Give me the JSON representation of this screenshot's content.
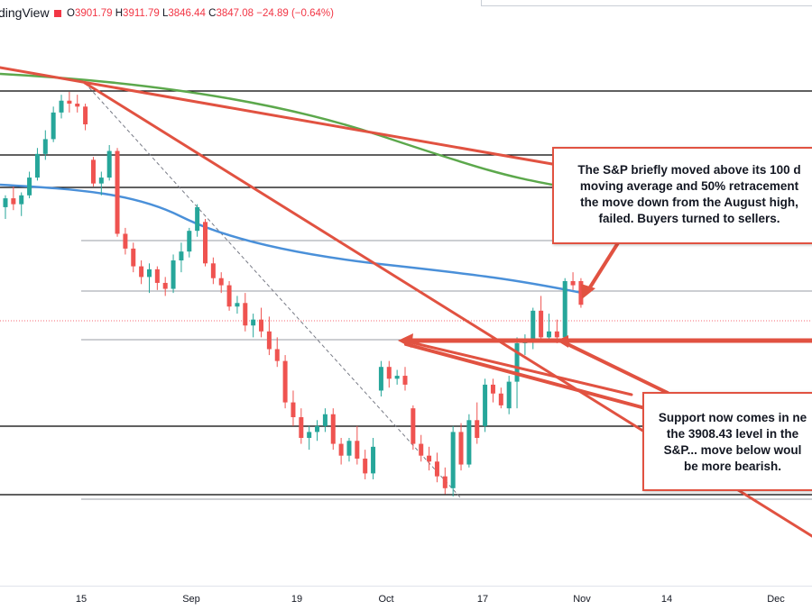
{
  "header": {
    "brand": "dingView",
    "ohlc": [
      {
        "k": "O",
        "v": "3901.79"
      },
      {
        "k": "H",
        "v": "3911.79"
      },
      {
        "k": "L",
        "v": "3846.44"
      },
      {
        "k": "C",
        "v": "3847.08"
      },
      {
        "k": "chg",
        "v": "−24.89 (−0.64%)"
      }
    ],
    "down_color": "#f23645"
  },
  "annotations": {
    "note1_lines": [
      "The S&P briefly moved above its 100 d",
      "moving average and 50% retracement",
      "the move down from the August high,",
      "failed. Buyers turned to sellers."
    ],
    "note2_lines": [
      "Support now comes in ne",
      "the 3908.43 level in the",
      "S&P... move below woul",
      "be more bearish."
    ]
  },
  "chart_data": {
    "type": "candlestick",
    "x_ticks": [
      "15",
      "Sep",
      "19",
      "Oct",
      "17",
      "Nov",
      "14",
      "Dec"
    ],
    "colors": {
      "up": "#26a69a",
      "down": "#ef5350",
      "ma100": "#4a90d9",
      "ma200": "#5ca84c",
      "trend": "#e15241"
    },
    "candles": [
      {
        "o": 3980,
        "h": 4000,
        "l": 3960,
        "c": 3995
      },
      {
        "o": 3995,
        "h": 4015,
        "l": 3975,
        "c": 3985
      },
      {
        "o": 3985,
        "h": 4005,
        "l": 3965,
        "c": 4000
      },
      {
        "o": 4000,
        "h": 4040,
        "l": 3995,
        "c": 4030
      },
      {
        "o": 4030,
        "h": 4080,
        "l": 4025,
        "c": 4070
      },
      {
        "o": 4070,
        "h": 4110,
        "l": 4060,
        "c": 4095
      },
      {
        "o": 4095,
        "h": 4150,
        "l": 4090,
        "c": 4140
      },
      {
        "o": 4140,
        "h": 4170,
        "l": 4130,
        "c": 4160
      },
      {
        "o": 4160,
        "h": 4175,
        "l": 4140,
        "c": 4155
      },
      {
        "o": 4155,
        "h": 4170,
        "l": 4140,
        "c": 4150
      },
      {
        "o": 4150,
        "h": 4155,
        "l": 4110,
        "c": 4120
      },
      {
        "o": 4060,
        "h": 4065,
        "l": 4015,
        "c": 4020
      },
      {
        "o": 4020,
        "h": 4040,
        "l": 4000,
        "c": 4030
      },
      {
        "o": 4030,
        "h": 4085,
        "l": 4025,
        "c": 4075
      },
      {
        "o": 4075,
        "h": 4080,
        "l": 3930,
        "c": 3935
      },
      {
        "o": 3935,
        "h": 3945,
        "l": 3900,
        "c": 3910
      },
      {
        "o": 3910,
        "h": 3920,
        "l": 3870,
        "c": 3880
      },
      {
        "o": 3880,
        "h": 3890,
        "l": 3850,
        "c": 3862
      },
      {
        "o": 3862,
        "h": 3885,
        "l": 3835,
        "c": 3875
      },
      {
        "o": 3875,
        "h": 3880,
        "l": 3840,
        "c": 3852
      },
      {
        "o": 3852,
        "h": 3862,
        "l": 3830,
        "c": 3842
      },
      {
        "o": 3842,
        "h": 3900,
        "l": 3835,
        "c": 3890
      },
      {
        "o": 3890,
        "h": 3920,
        "l": 3870,
        "c": 3905
      },
      {
        "o": 3905,
        "h": 3945,
        "l": 3895,
        "c": 3940
      },
      {
        "o": 3940,
        "h": 3985,
        "l": 3930,
        "c": 3980
      },
      {
        "o": 3955,
        "h": 3960,
        "l": 3880,
        "c": 3885
      },
      {
        "o": 3885,
        "h": 3895,
        "l": 3850,
        "c": 3860
      },
      {
        "o": 3860,
        "h": 3870,
        "l": 3835,
        "c": 3848
      },
      {
        "o": 3848,
        "h": 3855,
        "l": 3805,
        "c": 3812
      },
      {
        "o": 3812,
        "h": 3830,
        "l": 3800,
        "c": 3818
      },
      {
        "o": 3818,
        "h": 3835,
        "l": 3770,
        "c": 3780
      },
      {
        "o": 3780,
        "h": 3800,
        "l": 3760,
        "c": 3790
      },
      {
        "o": 3790,
        "h": 3810,
        "l": 3760,
        "c": 3770
      },
      {
        "o": 3770,
        "h": 3795,
        "l": 3730,
        "c": 3740
      },
      {
        "o": 3740,
        "h": 3760,
        "l": 3710,
        "c": 3720
      },
      {
        "o": 3720,
        "h": 3730,
        "l": 3640,
        "c": 3650
      },
      {
        "o": 3650,
        "h": 3670,
        "l": 3610,
        "c": 3625
      },
      {
        "o": 3625,
        "h": 3640,
        "l": 3580,
        "c": 3590
      },
      {
        "o": 3590,
        "h": 3610,
        "l": 3570,
        "c": 3600
      },
      {
        "o": 3600,
        "h": 3620,
        "l": 3585,
        "c": 3610
      },
      {
        "o": 3610,
        "h": 3640,
        "l": 3600,
        "c": 3630
      },
      {
        "o": 3630,
        "h": 3640,
        "l": 3570,
        "c": 3580
      },
      {
        "o": 3580,
        "h": 3590,
        "l": 3545,
        "c": 3560
      },
      {
        "o": 3560,
        "h": 3590,
        "l": 3550,
        "c": 3585
      },
      {
        "o": 3585,
        "h": 3610,
        "l": 3545,
        "c": 3555
      },
      {
        "o": 3555,
        "h": 3570,
        "l": 3520,
        "c": 3530
      },
      {
        "o": 3530,
        "h": 3590,
        "l": 3520,
        "c": 3575
      },
      {
        "o": 3670,
        "h": 3720,
        "l": 3660,
        "c": 3710
      },
      {
        "o": 3710,
        "h": 3720,
        "l": 3675,
        "c": 3690
      },
      {
        "o": 3690,
        "h": 3705,
        "l": 3680,
        "c": 3695
      },
      {
        "o": 3695,
        "h": 3710,
        "l": 3670,
        "c": 3680
      },
      {
        "o": 3640,
        "h": 3645,
        "l": 3570,
        "c": 3580
      },
      {
        "o": 3580,
        "h": 3595,
        "l": 3550,
        "c": 3560
      },
      {
        "o": 3560,
        "h": 3575,
        "l": 3535,
        "c": 3550
      },
      {
        "o": 3550,
        "h": 3565,
        "l": 3515,
        "c": 3525
      },
      {
        "o": 3525,
        "h": 3540,
        "l": 3495,
        "c": 3505
      },
      {
        "o": 3505,
        "h": 3610,
        "l": 3491,
        "c": 3600
      },
      {
        "o": 3600,
        "h": 3615,
        "l": 3535,
        "c": 3545
      },
      {
        "o": 3545,
        "h": 3630,
        "l": 3540,
        "c": 3620
      },
      {
        "o": 3620,
        "h": 3650,
        "l": 3580,
        "c": 3590
      },
      {
        "o": 3610,
        "h": 3690,
        "l": 3600,
        "c": 3680
      },
      {
        "o": 3680,
        "h": 3690,
        "l": 3650,
        "c": 3665
      },
      {
        "o": 3665,
        "h": 3675,
        "l": 3640,
        "c": 3645
      },
      {
        "o": 3640,
        "h": 3695,
        "l": 3630,
        "c": 3685
      },
      {
        "o": 3685,
        "h": 3760,
        "l": 3640,
        "c": 3750
      },
      {
        "o": 3750,
        "h": 3765,
        "l": 3730,
        "c": 3755
      },
      {
        "o": 3755,
        "h": 3810,
        "l": 3740,
        "c": 3805
      },
      {
        "o": 3805,
        "h": 3830,
        "l": 3755,
        "c": 3760
      },
      {
        "o": 3760,
        "h": 3800,
        "l": 3755,
        "c": 3770
      },
      {
        "o": 3770,
        "h": 3790,
        "l": 3750,
        "c": 3760
      },
      {
        "o": 3760,
        "h": 3860,
        "l": 3750,
        "c": 3855
      },
      {
        "o": 3855,
        "h": 3870,
        "l": 3840,
        "c": 3848
      },
      {
        "o": 3855,
        "h": 3860,
        "l": 3810,
        "c": 3815
      }
    ]
  }
}
